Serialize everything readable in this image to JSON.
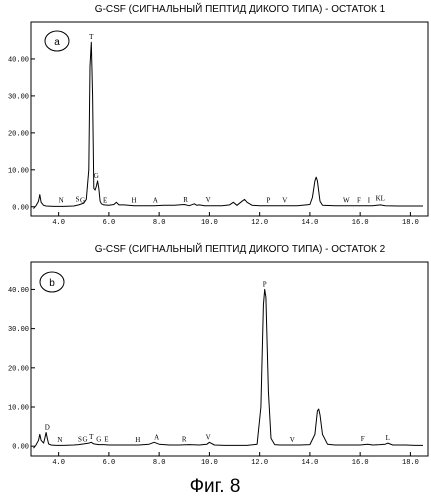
{
  "caption": "Фиг. 8",
  "chart_data": [
    {
      "type": "line",
      "panel_label": "a",
      "title": "G-CSF (СИГНАЛЬНЫЙ ПЕПТИД ДИКОГО ТИПА) - ОСТАТОК 1",
      "xlabel": "",
      "ylabel": "",
      "xlim": [
        2.9,
        18.7
      ],
      "ylim": [
        -2.5,
        50
      ],
      "x_ticks": [
        4.0,
        6.0,
        8.0,
        10.0,
        12.0,
        14.0,
        16.0,
        18.0
      ],
      "x_tick_labels": [
        "4.0",
        "6.0",
        "8.0",
        "10.0",
        "12.0",
        "14.0",
        "16.0",
        "18.0"
      ],
      "y_ticks": [
        0,
        10,
        20,
        30,
        40
      ],
      "y_tick_labels": [
        "0.00",
        "10.00",
        "20.00",
        "30.00",
        "40.00"
      ],
      "grid": false,
      "series": [
        {
          "x": [
            3.0,
            3.1,
            3.2,
            3.25,
            3.3,
            3.4,
            3.5,
            3.8,
            4.2,
            4.6,
            4.8,
            5.0,
            5.1,
            5.2,
            5.25,
            5.3,
            5.35,
            5.4,
            5.45,
            5.5,
            5.55,
            5.6,
            5.65,
            5.7,
            5.8,
            6.0,
            6.2,
            6.3,
            6.4,
            6.6,
            7.0,
            7.4,
            7.8,
            8.2,
            8.6,
            9.0,
            9.2,
            9.4,
            9.5,
            9.6,
            9.8,
            10.0,
            10.5,
            10.8,
            10.95,
            11.1,
            11.3,
            11.4,
            11.5,
            11.7,
            12.0,
            12.5,
            13.0,
            13.5,
            14.0,
            14.1,
            14.2,
            14.25,
            14.3,
            14.4,
            14.5,
            15.0,
            15.5,
            16.0,
            16.5,
            16.8,
            17.0,
            17.5,
            18.0,
            18.5
          ],
          "y": [
            -0.5,
            0.3,
            1.5,
            3.3,
            1.2,
            0.4,
            0.2,
            0.1,
            0.1,
            0.2,
            0.5,
            1.0,
            2.0,
            10.0,
            38.0,
            44.5,
            30.0,
            5.0,
            4.5,
            5.5,
            7.0,
            5.0,
            1.5,
            0.8,
            0.5,
            0.4,
            0.6,
            1.2,
            0.5,
            0.5,
            0.3,
            0.3,
            0.3,
            0.4,
            0.4,
            0.6,
            0.3,
            0.8,
            0.4,
            0.5,
            0.3,
            0.3,
            0.3,
            0.5,
            1.2,
            0.4,
            1.5,
            2.0,
            1.2,
            0.4,
            0.3,
            0.3,
            0.3,
            0.3,
            0.6,
            2.5,
            7.0,
            8.0,
            7.0,
            1.5,
            0.4,
            0.3,
            0.3,
            0.3,
            0.3,
            0.5,
            0.3,
            0.2,
            0.2,
            0.2
          ]
        }
      ],
      "annotations": [
        {
          "text": "T",
          "x": 5.3,
          "y": 44.8
        },
        {
          "text": "G",
          "x": 5.5,
          "y": 7.3
        },
        {
          "text": "N",
          "x": 4.1,
          "y": 0.6
        },
        {
          "text": "S",
          "x": 4.75,
          "y": 0.9
        },
        {
          "text": "G",
          "x": 4.95,
          "y": 0.6
        },
        {
          "text": "E",
          "x": 5.85,
          "y": 0.6
        },
        {
          "text": "H",
          "x": 7.0,
          "y": 0.6
        },
        {
          "text": "A",
          "x": 7.85,
          "y": 0.6
        },
        {
          "text": "R",
          "x": 9.05,
          "y": 0.7
        },
        {
          "text": "V",
          "x": 9.95,
          "y": 0.8
        },
        {
          "text": "P",
          "x": 12.35,
          "y": 0.6
        },
        {
          "text": "V",
          "x": 13.0,
          "y": 0.6
        },
        {
          "text": "W",
          "x": 15.45,
          "y": 0.6
        },
        {
          "text": "F",
          "x": 15.95,
          "y": 0.6
        },
        {
          "text": "I",
          "x": 16.35,
          "y": 0.6
        },
        {
          "text": "KL",
          "x": 16.8,
          "y": 1.1
        }
      ]
    },
    {
      "type": "line",
      "panel_label": "b",
      "title": "G-CSF (СИГНАЛЬНЫЙ ПЕПТИД ДИКОГО ТИПА) - ОСТАТОК 2",
      "xlabel": "",
      "ylabel": "",
      "xlim": [
        2.9,
        18.7
      ],
      "ylim": [
        -2.5,
        47
      ],
      "x_ticks": [
        4.0,
        6.0,
        8.0,
        10.0,
        12.0,
        14.0,
        16.0,
        18.0
      ],
      "x_tick_labels": [
        "4.0",
        "6.0",
        "8.0",
        "10.0",
        "12.0",
        "14.0",
        "16.0",
        "18.0"
      ],
      "y_ticks": [
        0,
        10,
        20,
        30,
        40
      ],
      "y_tick_labels": [
        "0.00",
        "10.00",
        "20.00",
        "30.00",
        "40.00"
      ],
      "grid": false,
      "series": [
        {
          "x": [
            3.0,
            3.1,
            3.2,
            3.25,
            3.3,
            3.4,
            3.45,
            3.5,
            3.55,
            3.6,
            3.7,
            3.9,
            4.2,
            4.6,
            4.8,
            5.0,
            5.2,
            5.3,
            5.4,
            5.6,
            5.8,
            6.0,
            6.4,
            6.8,
            7.2,
            7.6,
            7.8,
            8.0,
            8.4,
            8.8,
            9.2,
            9.6,
            9.9,
            10.0,
            10.2,
            10.6,
            11.0,
            11.5,
            11.9,
            12.05,
            12.15,
            12.2,
            12.25,
            12.35,
            12.45,
            12.6,
            12.8,
            13.2,
            13.6,
            14.0,
            14.2,
            14.3,
            14.35,
            14.4,
            14.5,
            14.7,
            15.0,
            15.5,
            16.0,
            16.3,
            16.5,
            16.8,
            17.0,
            17.1,
            17.3,
            17.8,
            18.2,
            18.5
          ],
          "y": [
            -0.5,
            0.3,
            1.5,
            3.0,
            1.5,
            0.8,
            2.0,
            3.5,
            2.0,
            0.6,
            0.3,
            0.2,
            0.2,
            0.3,
            0.4,
            0.6,
            0.8,
            1.0,
            0.6,
            0.4,
            0.4,
            0.3,
            0.3,
            0.3,
            0.3,
            0.5,
            1.0,
            0.5,
            0.3,
            0.3,
            0.4,
            0.3,
            0.5,
            1.0,
            0.3,
            0.2,
            0.2,
            0.2,
            0.5,
            10.0,
            36.0,
            40.0,
            38.0,
            14.0,
            2.0,
            0.4,
            0.3,
            0.3,
            0.3,
            0.4,
            3.0,
            9.0,
            9.5,
            8.0,
            3.0,
            0.5,
            0.3,
            0.3,
            0.3,
            0.5,
            0.3,
            0.4,
            0.5,
            0.8,
            0.3,
            0.3,
            0.2,
            0.2
          ]
        }
      ],
      "annotations": [
        {
          "text": "D",
          "x": 3.55,
          "y": 3.7
        },
        {
          "text": "N",
          "x": 4.05,
          "y": 0.6
        },
        {
          "text": "S",
          "x": 4.85,
          "y": 0.7
        },
        {
          "text": "G",
          "x": 5.05,
          "y": 0.7
        },
        {
          "text": "T",
          "x": 5.3,
          "y": 1.3
        },
        {
          "text": "G",
          "x": 5.6,
          "y": 0.7
        },
        {
          "text": "E",
          "x": 5.9,
          "y": 0.7
        },
        {
          "text": "H",
          "x": 7.15,
          "y": 0.6
        },
        {
          "text": "A",
          "x": 7.9,
          "y": 1.2
        },
        {
          "text": "R",
          "x": 9.0,
          "y": 0.7
        },
        {
          "text": "V",
          "x": 9.95,
          "y": 1.2
        },
        {
          "text": "P",
          "x": 12.2,
          "y": 40.3
        },
        {
          "text": "V",
          "x": 13.3,
          "y": 0.6
        },
        {
          "text": "F",
          "x": 16.1,
          "y": 0.8
        },
        {
          "text": "L",
          "x": 17.1,
          "y": 1.1
        }
      ]
    }
  ]
}
